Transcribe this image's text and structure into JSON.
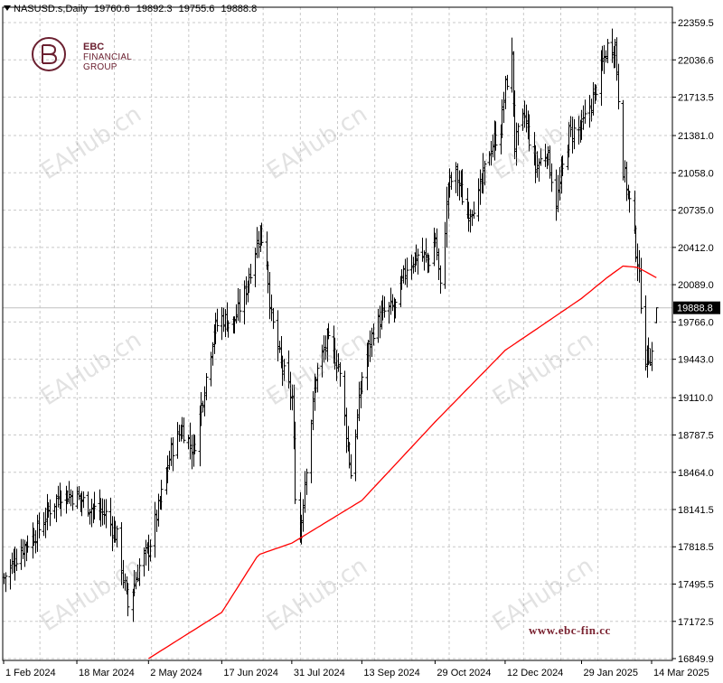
{
  "header": {
    "symbol": "NASUSD.s,Daily",
    "open": "19760.6",
    "high": "19892.3",
    "low": "19755.6",
    "close": "19888.8"
  },
  "logo": {
    "line1": "EBC",
    "line2": "FINANCIAL",
    "line3": "GROUP"
  },
  "watermark": "EAHub.cn",
  "website": "www.ebc-fin.cc",
  "colors": {
    "candles": "#000000",
    "ma_line": "#ff0000",
    "grid": "#c8c8c8",
    "current_price_line": "#c0c0c0"
  },
  "chart_data": {
    "type": "line",
    "chart_kind": "OHLC bars with moving average",
    "grid": true,
    "ylim": [
      16849.9,
      22359.5
    ],
    "y_ticks": [
      "22359.5",
      "22036.6",
      "21713.5",
      "21381.0",
      "21058.0",
      "20735.0",
      "20412.0",
      "20089.0",
      "19766.0",
      "19443.0",
      "19110.0",
      "18787.5",
      "18464.0",
      "18141.5",
      "17818.5",
      "17495.5",
      "17172.5",
      "16849.9"
    ],
    "x_ticks": [
      "1 Feb 2024",
      "18 Mar 2024",
      "2 May 2024",
      "17 Jun 2024",
      "31 Jul 2024",
      "13 Sep 2024",
      "29 Oct 2024",
      "12 Dec 2024",
      "29 Jan 2025",
      "14 Mar 2025"
    ],
    "current_price_label": "19888.8",
    "close_anchors": [
      [
        "1 Feb 2024",
        17550
      ],
      [
        "12 Feb 2024",
        17800
      ],
      [
        "22 Feb 2024",
        17950
      ],
      [
        "1 Mar 2024",
        18150
      ],
      [
        "8 Mar 2024",
        18280
      ],
      [
        "18 Mar 2024",
        18250
      ],
      [
        "28 Mar 2024",
        18150
      ],
      [
        "5 Apr 2024",
        18100
      ],
      [
        "12 Apr 2024",
        17900
      ],
      [
        "19 Apr 2024",
        17300
      ],
      [
        "26 Apr 2024",
        17650
      ],
      [
        "2 May 2024",
        17800
      ],
      [
        "9 May 2024",
        18200
      ],
      [
        "16 May 2024",
        18650
      ],
      [
        "23 May 2024",
        18850
      ],
      [
        "30 May 2024",
        18650
      ],
      [
        "6 Jun 2024",
        19200
      ],
      [
        "12 Jun 2024",
        19700
      ],
      [
        "17 Jun 2024",
        19800
      ],
      [
        "24 Jun 2024",
        19750
      ],
      [
        "1 Jul 2024",
        20000
      ],
      [
        "8 Jul 2024",
        20400
      ],
      [
        "11 Jul 2024",
        20550
      ],
      [
        "15 Jul 2024",
        20300
      ],
      [
        "18 Jul 2024",
        19800
      ],
      [
        "24 Jul 2024",
        19400
      ],
      [
        "31 Jul 2024",
        19100
      ],
      [
        "2 Aug 2024",
        18300
      ],
      [
        "5 Aug 2024",
        17900
      ],
      [
        "8 Aug 2024",
        18400
      ],
      [
        "15 Aug 2024",
        19300
      ],
      [
        "22 Aug 2024",
        19600
      ],
      [
        "29 Aug 2024",
        19400
      ],
      [
        "4 Sep 2024",
        18700
      ],
      [
        "6 Sep 2024",
        18450
      ],
      [
        "13 Sep 2024",
        19300
      ],
      [
        "20 Sep 2024",
        19700
      ],
      [
        "27 Sep 2024",
        19850
      ],
      [
        "4 Oct 2024",
        19900
      ],
      [
        "11 Oct 2024",
        20250
      ],
      [
        "18 Oct 2024",
        20350
      ],
      [
        "25 Oct 2024",
        20300
      ],
      [
        "29 Oct 2024",
        20500
      ],
      [
        "1 Nov 2024",
        20050
      ],
      [
        "6 Nov 2024",
        20950
      ],
      [
        "11 Nov 2024",
        21050
      ],
      [
        "18 Nov 2024",
        20700
      ],
      [
        "25 Nov 2024",
        20850
      ],
      [
        "2 Dec 2024",
        21250
      ],
      [
        "9 Dec 2024",
        21450
      ],
      [
        "12 Dec 2024",
        21800
      ],
      [
        "16 Dec 2024",
        22050
      ],
      [
        "18 Dec 2024",
        21300
      ],
      [
        "24 Dec 2024",
        21550
      ],
      [
        "31 Dec 2024",
        21100
      ],
      [
        "7 Jan 2025",
        21250
      ],
      [
        "13 Jan 2025",
        20800
      ],
      [
        "21 Jan 2025",
        21400
      ],
      [
        "29 Jan 2025",
        21450
      ],
      [
        "5 Feb 2025",
        21700
      ],
      [
        "14 Feb 2025",
        22150
      ],
      [
        "19 Feb 2025",
        22150
      ],
      [
        "24 Feb 2025",
        21100
      ],
      [
        "28 Feb 2025",
        20800
      ],
      [
        "5 Mar 2025",
        20300
      ],
      [
        "10 Mar 2025",
        19450
      ],
      [
        "14 Mar 2025",
        19500
      ],
      [
        "17 Mar 2025",
        19888.8
      ]
    ],
    "ma_anchors": [
      [
        "2 May 2024",
        16849.9
      ],
      [
        "17 Jun 2024",
        17250
      ],
      [
        "10 Jul 2024",
        17750
      ],
      [
        "31 Jul 2024",
        17850
      ],
      [
        "13 Sep 2024",
        18220
      ],
      [
        "29 Oct 2024",
        18900
      ],
      [
        "12 Dec 2024",
        19520
      ],
      [
        "29 Jan 2025",
        19970
      ],
      [
        "14 Feb 2025",
        20150
      ],
      [
        "24 Feb 2025",
        20250
      ],
      [
        "5 Mar 2025",
        20240
      ],
      [
        "17 Mar 2025",
        20150
      ]
    ]
  }
}
